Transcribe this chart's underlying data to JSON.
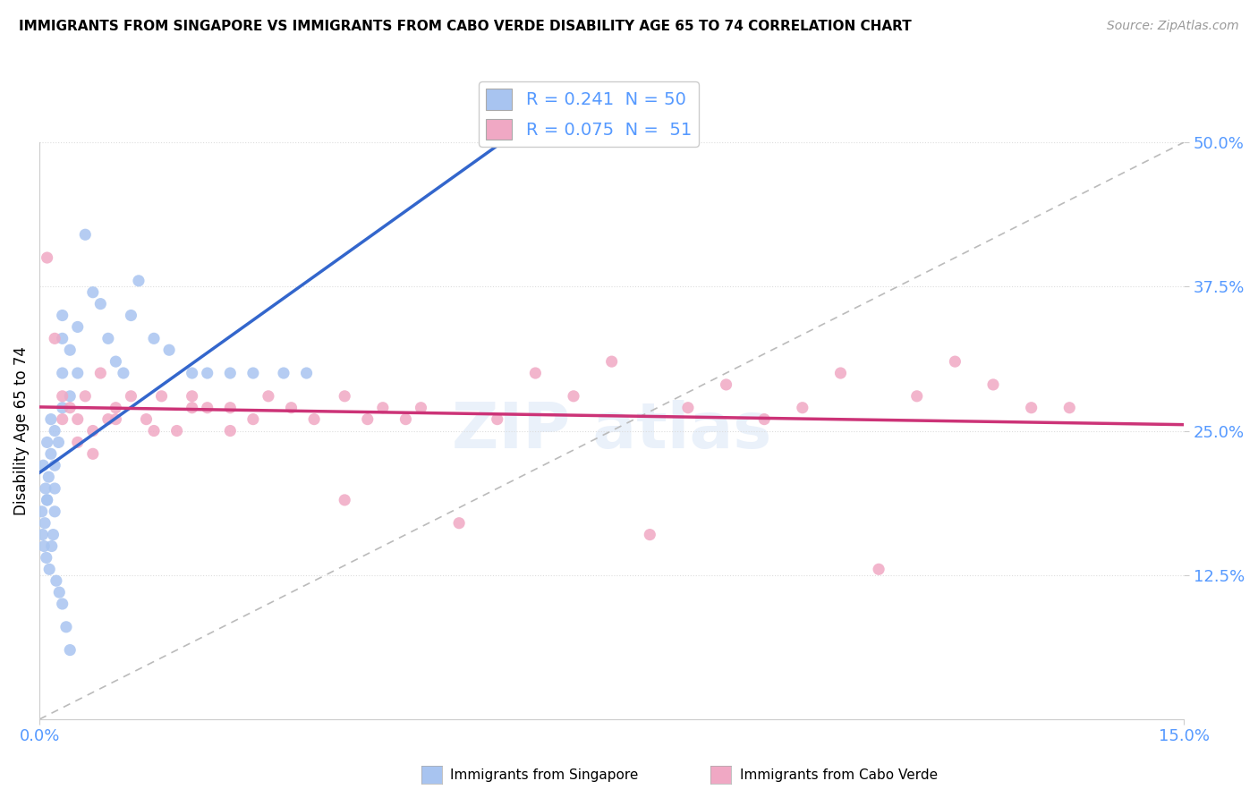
{
  "title": "IMMIGRANTS FROM SINGAPORE VS IMMIGRANTS FROM CABO VERDE DISABILITY AGE 65 TO 74 CORRELATION CHART",
  "source": "Source: ZipAtlas.com",
  "ylabel": "Disability Age 65 to 74",
  "xlim": [
    0.0,
    0.15
  ],
  "ylim": [
    0.0,
    0.5
  ],
  "ytick_vals": [
    0.125,
    0.25,
    0.375,
    0.5
  ],
  "ytick_labels": [
    "12.5%",
    "25.0%",
    "37.5%",
    "50.0%"
  ],
  "singapore_color": "#a8c4f0",
  "caboverde_color": "#f0a8c4",
  "singapore_line_color": "#3366cc",
  "caboverde_line_color": "#cc3377",
  "singapore_R": 0.241,
  "singapore_N": 50,
  "caboverde_R": 0.075,
  "caboverde_N": 51,
  "diag_color": "#bbbbbb",
  "grid_color": "#dddddd",
  "tick_color": "#5599ff",
  "watermark_color": "#dce8f5",
  "watermark_pink": "#f5dce8"
}
